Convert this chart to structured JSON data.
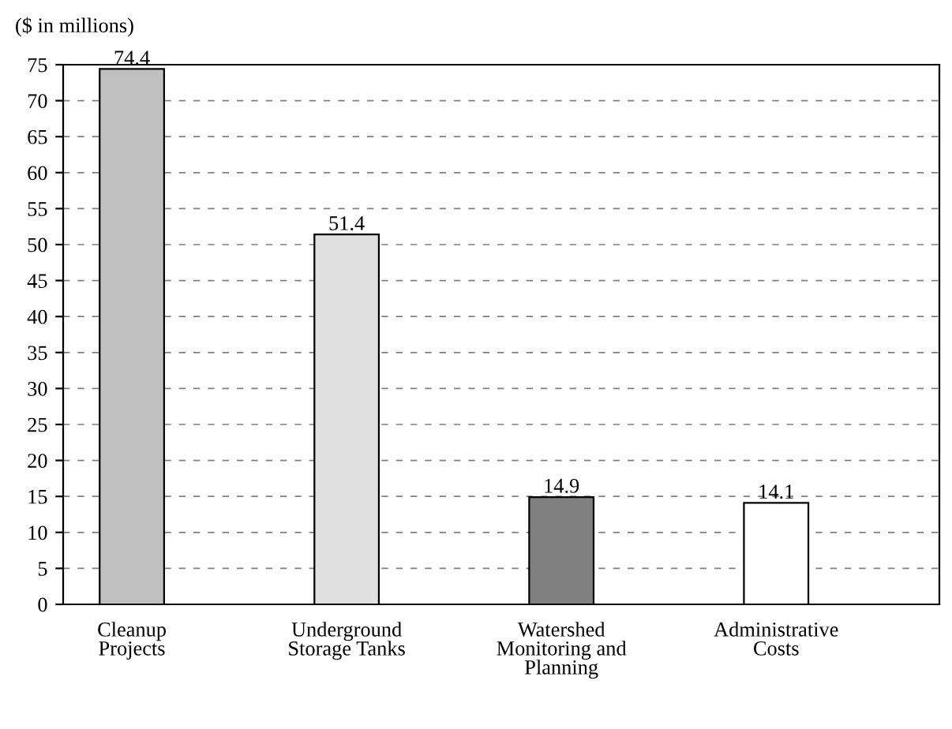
{
  "chart_data": {
    "type": "bar",
    "ylabel": "($ in millions)",
    "categories": [
      "Cleanup\nProjects",
      "Underground\nStorage Tanks",
      "Watershed\nMonitoring and\nPlanning",
      "Administrative\nCosts"
    ],
    "values": [
      74.4,
      51.4,
      14.9,
      14.1
    ],
    "colors": [
      "#c0c0c0",
      "#e0e0e0",
      "#808080",
      "#ffffff"
    ],
    "ylim": [
      0,
      75
    ],
    "yticks": [
      0,
      5,
      10,
      15,
      20,
      25,
      30,
      35,
      40,
      45,
      50,
      55,
      60,
      65,
      70,
      75
    ],
    "grid": "y",
    "data_labels": true,
    "legend": false
  }
}
